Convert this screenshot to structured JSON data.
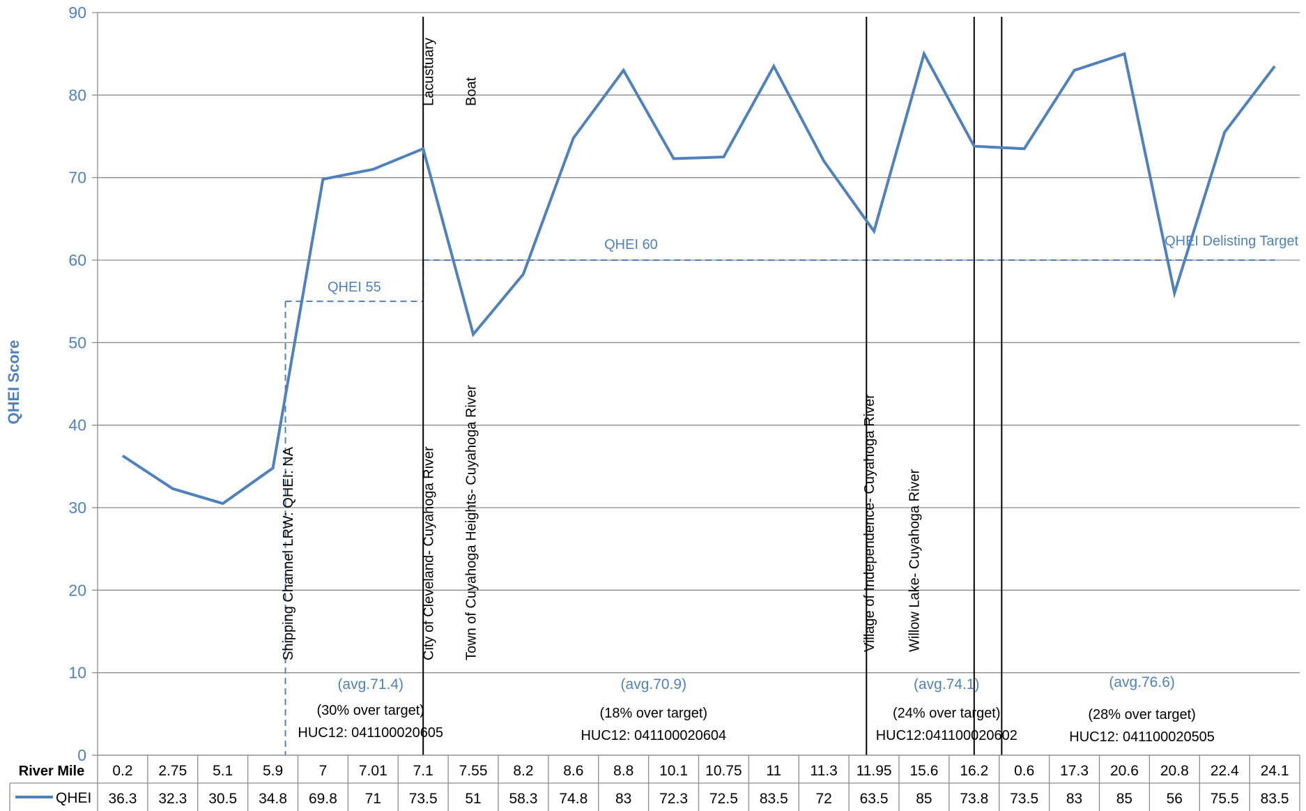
{
  "chart_data": {
    "type": "line",
    "title": "",
    "xlabel": "River Mile",
    "ylabel": "QHEI Score",
    "ylim": [
      0,
      90
    ],
    "yticks": [
      0,
      10,
      20,
      30,
      40,
      50,
      60,
      70,
      80,
      90
    ],
    "grid": "horizontal",
    "legend": "data-table-left",
    "categories": [
      "0.2",
      "2.75",
      "5.1",
      "5.9",
      "7",
      "7.01",
      "7.1",
      "7.55",
      "8.2",
      "8.6",
      "8.8",
      "10.1",
      "10.75",
      "11",
      "11.3",
      "11.95",
      "15.6",
      "16.2",
      "0.6",
      "17.3",
      "20.6",
      "20.8",
      "22.4",
      "24.1"
    ],
    "series": [
      {
        "name": "QHEI",
        "color": "#4F81BD",
        "values": [
          36.3,
          32.3,
          30.5,
          34.8,
          69.8,
          71,
          73.5,
          51,
          58.3,
          74.8,
          83,
          72.3,
          72.5,
          83.5,
          72,
          63.5,
          85,
          73.8,
          73.5,
          83,
          85,
          56,
          75.5,
          83.5
        ]
      }
    ],
    "table_values": [
      "36.3",
      "32.3",
      "30.5",
      "34.8",
      "69.8",
      "71",
      "73.5",
      "51",
      "58.3",
      "74.8",
      "83",
      "72.3",
      "72.5",
      "83.5",
      "72",
      "63.5",
      "85",
      "73.8",
      "73.5",
      "83",
      "85",
      "56",
      "75.5",
      "83.5"
    ],
    "targets": [
      {
        "label": "QHEI 55",
        "value": 55,
        "start_index": 3.75,
        "end_index": 6.5
      },
      {
        "label": "QHEI 60",
        "value": 60,
        "start_index": 6.5,
        "end_index": 23.5
      },
      {
        "label": "QHEI Delisting Target",
        "value": 60
      }
    ],
    "dividers": [
      6.5,
      15.35,
      17.5,
      18.05
    ],
    "vertical_labels": [
      {
        "text": "Shipping Channel LRW: QHEI: NA",
        "index": 3.3
      },
      {
        "text": "Lacustuary",
        "index": 6.1
      },
      {
        "text": "City of Cleveland- Cuyahoga River",
        "index": 6.1
      },
      {
        "text": "Boat",
        "index": 6.95
      },
      {
        "text": "Town of Cuyahoga Heights- Cuyahoga River",
        "index": 6.95
      },
      {
        "text": "Village of Independence- Cuyahoga River",
        "index": 14.9
      },
      {
        "text": "Willow Lake- Cuyahoga River",
        "index": 15.8
      }
    ],
    "segments": [
      {
        "avg": "(avg.71.4)",
        "over": "(30% over target)",
        "huc": "HUC12: 041100020605",
        "center_index": 4.95
      },
      {
        "avg": "(avg.70.9)",
        "over": "(18% over target)",
        "huc": "HUC12: 041100020604",
        "center_index": 10.6
      },
      {
        "avg": "(avg.74.1)",
        "over": "(24% over target)",
        "huc": "HUC12:041100020602",
        "center_index": 16.45
      },
      {
        "avg": "(avg.76.6)",
        "over": "(28% over target)",
        "huc": "HUC12: 041100020505",
        "center_index": 20.35
      }
    ]
  }
}
